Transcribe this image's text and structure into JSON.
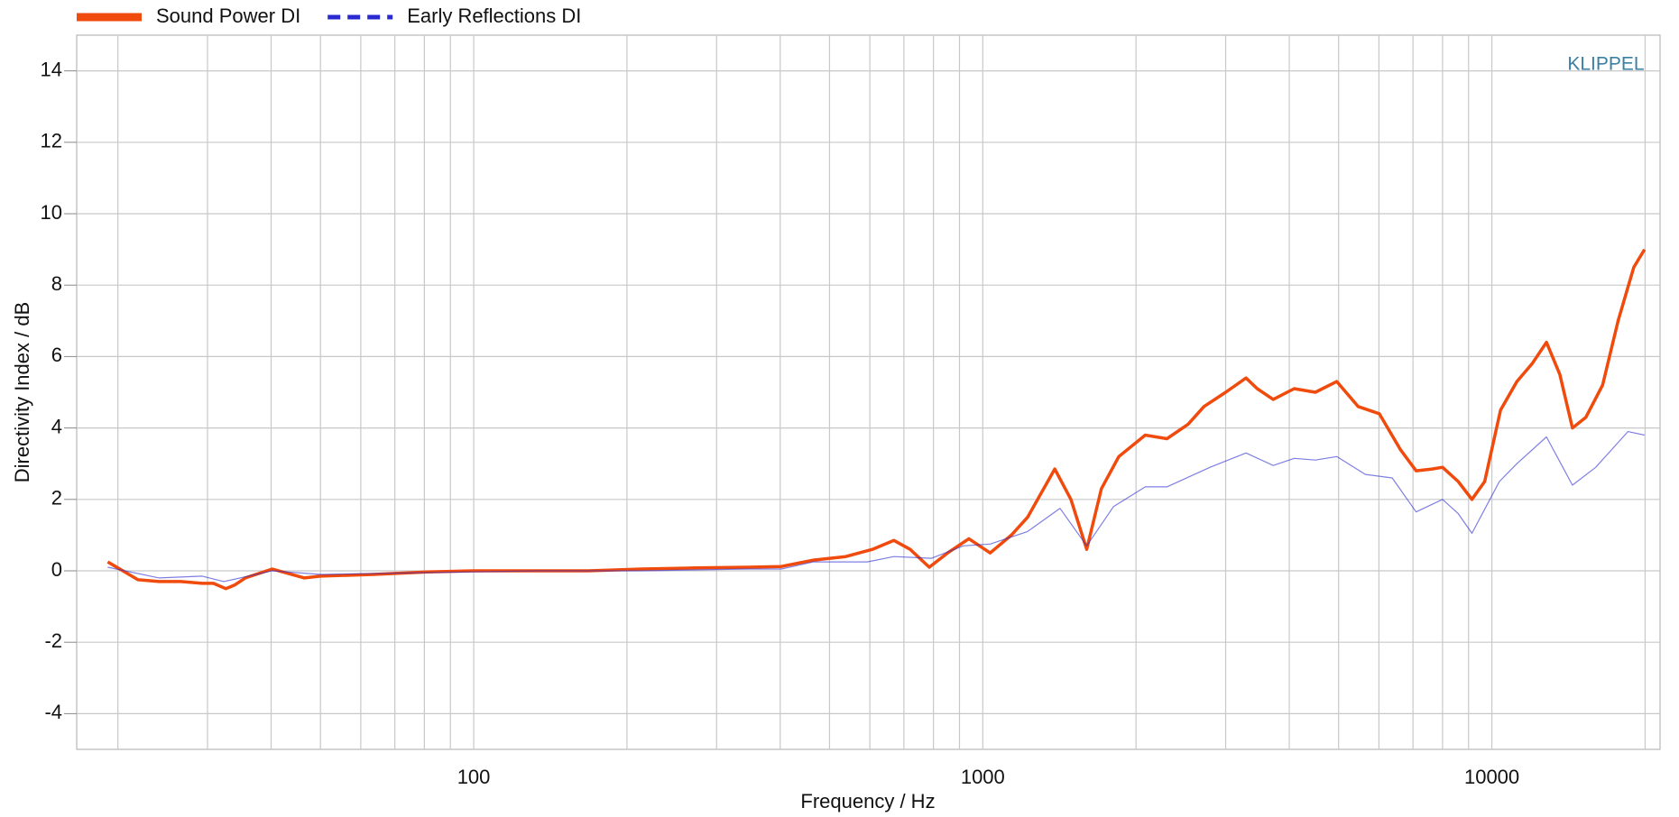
{
  "chart_data": {
    "type": "line",
    "x_label": "Frequency / Hz",
    "y_label": "Directivity Index  / dB",
    "annotation": "KLIPPEL",
    "xscale": "log",
    "xlim": [
      16.6,
      21400
    ],
    "xticks": [
      100,
      1000,
      10000
    ],
    "xgrid_minor": [
      20,
      30,
      40,
      50,
      60,
      70,
      80,
      90,
      200,
      300,
      400,
      500,
      600,
      700,
      800,
      900,
      2000,
      3000,
      4000,
      5000,
      6000,
      7000,
      8000,
      9000,
      20000
    ],
    "ylim": [
      -5,
      15
    ],
    "yticks": [
      -4,
      -2,
      0,
      2,
      4,
      6,
      8,
      10,
      12,
      14
    ],
    "grid": true,
    "legend": "top-left",
    "series": [
      {
        "name": "Sound Power DI",
        "color": "#f04a0c",
        "x": [
          19.1,
          21.9,
          24.1,
          26.6,
          29.3,
          30.8,
          32.6,
          33.9,
          35.6,
          40.2,
          46.5,
          50,
          63.7,
          81,
          100,
          132,
          168,
          214,
          273,
          347,
          402,
          465,
          538,
          607,
          669,
          720,
          785,
          853,
          939,
          1034,
          1138,
          1225,
          1385,
          1490,
          1600,
          1710,
          1850,
          2085,
          2300,
          2530,
          2720,
          3000,
          3290,
          3460,
          3720,
          4090,
          4500,
          4960,
          5460,
          6010,
          6610,
          7100,
          7630,
          8000,
          8590,
          9140,
          9680,
          10400,
          11200,
          12000,
          12800,
          13600,
          14400,
          15300,
          16500,
          17700,
          19000,
          19950
        ],
        "values": [
          0.25,
          -0.25,
          -0.3,
          -0.3,
          -0.35,
          -0.35,
          -0.5,
          -0.4,
          -0.2,
          0.05,
          -0.2,
          -0.15,
          -0.1,
          -0.03,
          0,
          0,
          0,
          0.05,
          0.08,
          0.1,
          0.12,
          0.3,
          0.4,
          0.6,
          0.85,
          0.6,
          0.1,
          0.5,
          0.9,
          0.5,
          1.0,
          1.5,
          2.85,
          2.0,
          0.6,
          2.3,
          3.2,
          3.8,
          3.7,
          4.1,
          4.6,
          5.0,
          5.4,
          5.1,
          4.8,
          5.1,
          5.0,
          5.3,
          4.6,
          4.4,
          3.4,
          2.8,
          2.85,
          2.9,
          2.5,
          2.0,
          2.5,
          4.5,
          5.3,
          5.8,
          6.4,
          5.5,
          4.0,
          4.3,
          5.2,
          7.0,
          8.5,
          9.0
        ]
      },
      {
        "name": "Early Reflections DI",
        "color": "#2a2ad0",
        "x": [
          19.1,
          24.1,
          29.3,
          32.3,
          40.2,
          50,
          81,
          132,
          214,
          347,
          402,
          465,
          593,
          669,
          793,
          916,
          1034,
          1225,
          1418,
          1600,
          1807,
          2085,
          2300,
          2795,
          3290,
          3720,
          4090,
          4500,
          4960,
          5645,
          6371,
          7100,
          8000,
          8590,
          9140,
          10345,
          11200,
          12800,
          14400,
          16000,
          18510,
          19950
        ],
        "values": [
          0.1,
          -0.2,
          -0.15,
          -0.3,
          0,
          -0.1,
          -0.05,
          0,
          0,
          0.05,
          0.05,
          0.25,
          0.25,
          0.4,
          0.35,
          0.7,
          0.75,
          1.1,
          1.75,
          0.7,
          1.8,
          2.35,
          2.35,
          2.9,
          3.3,
          2.95,
          3.15,
          3.1,
          3.2,
          2.7,
          2.6,
          1.65,
          2.0,
          1.6,
          1.05,
          2.5,
          3.0,
          3.75,
          2.4,
          2.9,
          3.9,
          3.8
        ]
      }
    ]
  }
}
